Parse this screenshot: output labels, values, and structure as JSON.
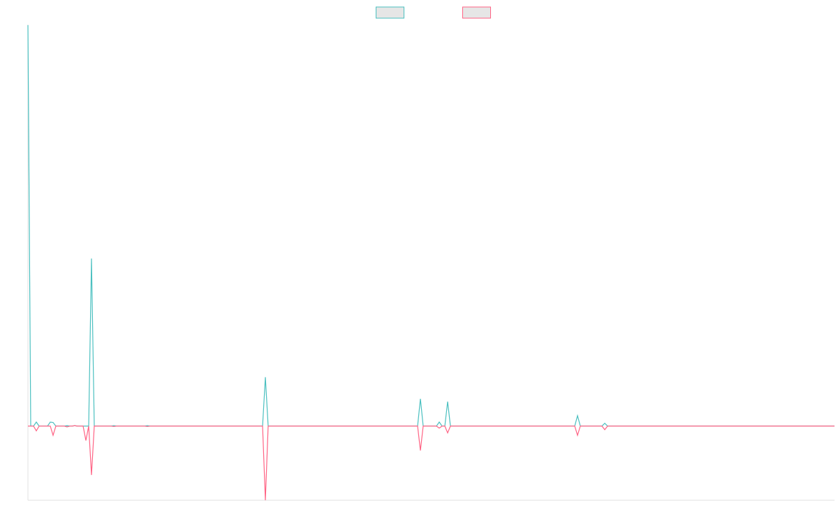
{
  "chart_data": {
    "type": "line",
    "x": [
      0,
      4,
      8,
      12,
      16,
      28,
      32,
      36,
      40,
      52,
      56,
      60,
      63,
      67,
      71,
      79,
      83,
      87,
      91,
      95,
      119,
      123,
      127,
      167,
      171,
      175,
      336,
      340,
      344,
      558,
      562,
      566,
      585,
      589,
      593,
      597,
      601,
      605,
      783,
      787,
      791,
      822,
      826,
      830,
      1155
    ],
    "series": [
      {
        "color": "#4bc0c0",
        "values": [
          100,
          0,
          0,
          1.0,
          0,
          0,
          1.0,
          0.9,
          0,
          0,
          0.1,
          0,
          0,
          0.1,
          0,
          0,
          0,
          0,
          41.8,
          0,
          0,
          0.1,
          0,
          0,
          0.1,
          0,
          0,
          12.2,
          0,
          0,
          6.8,
          0,
          0,
          1.0,
          0,
          0,
          6.1,
          0,
          0,
          2.6,
          0,
          0,
          0.7,
          0,
          0
        ]
      },
      {
        "color": "#ff6384",
        "values": [
          0,
          0,
          0,
          -1.2,
          0,
          0,
          0,
          -2.3,
          0,
          0,
          -0.2,
          0,
          0,
          0.1,
          0,
          0,
          -3.6,
          0,
          -12.2,
          0,
          0,
          -0.1,
          0,
          0,
          -0.1,
          0,
          0,
          -18.5,
          0,
          0,
          -6.1,
          0,
          0,
          -0.5,
          0,
          0,
          -1.7,
          0,
          0,
          -2.3,
          0,
          0,
          -0.9,
          0,
          0
        ]
      }
    ],
    "xlim": [
      0,
      1155
    ],
    "ylim": [
      -18.5,
      100
    ],
    "legend": "top"
  }
}
